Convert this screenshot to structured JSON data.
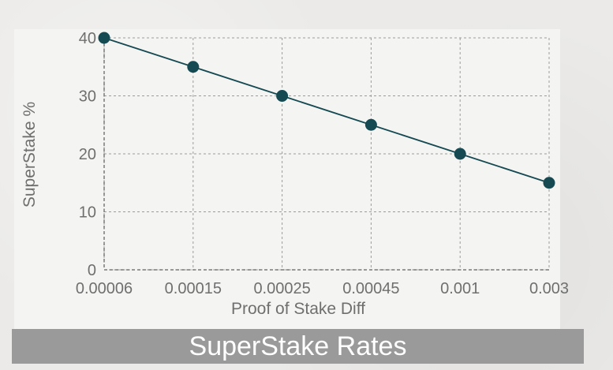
{
  "chart_data": {
    "type": "line",
    "categories": [
      "0.00006",
      "0.00015",
      "0.00025",
      "0.00045",
      "0.001",
      "0.003"
    ],
    "series": [
      {
        "values": [
          40,
          35,
          30,
          25,
          20,
          15
        ]
      }
    ],
    "xlabel": "Proof of Stake Diff",
    "ylabel": "SuperStake %",
    "yticks": [
      "0",
      "10",
      "20",
      "30",
      "40"
    ],
    "ylim": [
      0,
      40
    ],
    "grid": true,
    "colors": {
      "line": "#164a52",
      "marker": "#164a52",
      "grid": "#9b9b9b",
      "text": "#6f6f6f"
    }
  },
  "caption": {
    "title": "SuperStake Rates"
  }
}
